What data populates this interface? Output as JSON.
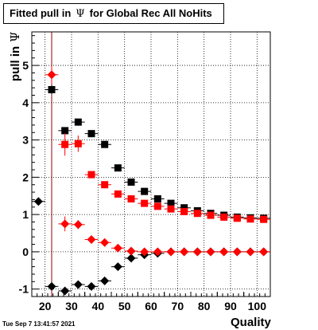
{
  "title": {
    "prefix": "Fitted pull in",
    "symbol": "Ψ",
    "suffix": "for Global Rec All NoHits"
  },
  "ylabel": {
    "text": "pull in",
    "symbol": "Ψ"
  },
  "xlabel": "Quality",
  "datestamp": "Tue Sep  7 13:41:57 2021",
  "chart_data": {
    "type": "scatter",
    "title": "Fitted pull in Ψ for Global Rec All NoHits",
    "xlabel": "Quality",
    "ylabel": "pull in Ψ",
    "xlim": [
      15,
      105
    ],
    "ylim": [
      -1.2,
      5.9
    ],
    "xticks": [
      20,
      30,
      40,
      50,
      60,
      70,
      80,
      90,
      100
    ],
    "yticks": [
      -1,
      0,
      1,
      2,
      3,
      4,
      5
    ],
    "grid": true,
    "reference_line_x": 22.5,
    "series": [
      {
        "marker": "square",
        "color": "#000000",
        "x": [
          22.5,
          27.5,
          32.5,
          37.5,
          42.5,
          47.5,
          52.5,
          57.5,
          62.5,
          67.5,
          72.5,
          77.5,
          82.5,
          87.5,
          92.5,
          97.5,
          102.5
        ],
        "y": [
          4.35,
          3.25,
          3.48,
          3.17,
          2.88,
          2.25,
          1.87,
          1.62,
          1.42,
          1.3,
          1.18,
          1.1,
          1.03,
          0.98,
          0.93,
          0.91,
          0.9
        ],
        "yerr": [
          0.12,
          0.06,
          0.05,
          0.05,
          0.04,
          0.04,
          0.03,
          0.03,
          0.03,
          0.03,
          0.02,
          0.02,
          0.02,
          0.02,
          0.02,
          0.02,
          0.02
        ]
      },
      {
        "marker": "square",
        "color": "#ff0000",
        "x": [
          27.5,
          32.5,
          37.5,
          42.5,
          47.5,
          52.5,
          57.5,
          62.5,
          67.5,
          72.5,
          77.5,
          82.5,
          87.5,
          92.5,
          97.5,
          102.5
        ],
        "y": [
          2.88,
          2.9,
          2.07,
          1.8,
          1.55,
          1.42,
          1.3,
          1.22,
          1.15,
          1.08,
          1.03,
          0.98,
          0.93,
          0.9,
          0.88,
          0.87
        ],
        "yerr": [
          0.3,
          0.22,
          0.05,
          0.04,
          0.04,
          0.03,
          0.03,
          0.03,
          0.03,
          0.02,
          0.02,
          0.02,
          0.02,
          0.02,
          0.02,
          0.02
        ]
      },
      {
        "marker": "diamond",
        "color": "#000000",
        "x": [
          17.5,
          22.5,
          27.5,
          32.5,
          37.5,
          42.5,
          47.5,
          52.5,
          57.5,
          62.5,
          67.5,
          72.5,
          77.5,
          82.5,
          87.5,
          92.5,
          97.5,
          102.5
        ],
        "y": [
          1.35,
          -0.93,
          -1.05,
          -0.88,
          -0.93,
          -0.78,
          -0.4,
          -0.17,
          -0.08,
          -0.04,
          0.0,
          0.0,
          0.0,
          0.0,
          0.0,
          0.0,
          0.0,
          0.0
        ],
        "yerr": [
          0.05,
          0.05,
          0.04,
          0.04,
          0.04,
          0.03,
          0.03,
          0.02,
          0.02,
          0.02,
          0.02,
          0.02,
          0.02,
          0.02,
          0.02,
          0.02,
          0.02,
          0.02
        ]
      },
      {
        "marker": "diamond",
        "color": "#ff0000",
        "x": [
          22.5,
          27.5,
          32.5,
          37.5,
          42.5,
          47.5,
          52.5,
          57.5,
          62.5,
          67.5,
          72.5,
          77.5,
          82.5,
          87.5,
          92.5,
          97.5,
          102.5
        ],
        "y": [
          4.75,
          0.75,
          0.73,
          0.33,
          0.25,
          0.1,
          0.02,
          0.0,
          0.0,
          0.0,
          0.0,
          0.0,
          0.0,
          0.0,
          0.0,
          0.0,
          0.0
        ],
        "yerr": [
          0.25,
          0.2,
          0.12,
          0.05,
          0.04,
          0.03,
          0.02,
          0.02,
          0.02,
          0.02,
          0.02,
          0.02,
          0.02,
          0.02,
          0.02,
          0.02,
          0.02
        ]
      }
    ]
  }
}
